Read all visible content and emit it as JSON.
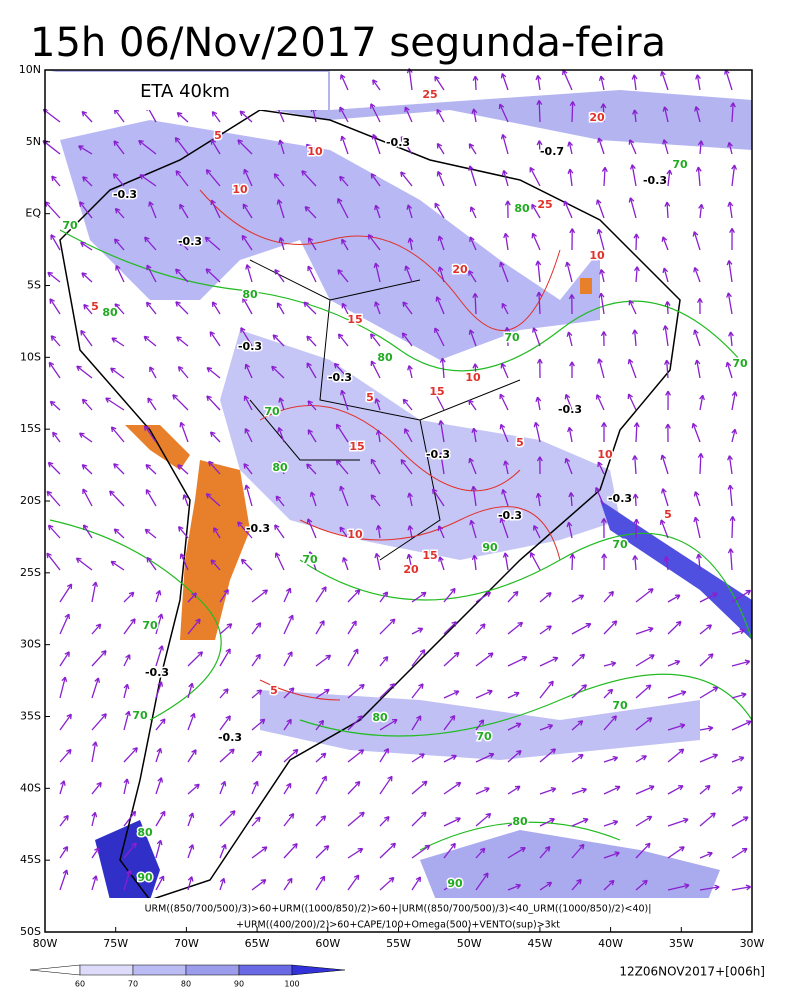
{
  "header": {
    "title": "15h 06/Nov/2017 segunda-feira"
  },
  "map": {
    "model_label": "ETA 40km",
    "lat_labels": [
      "10N",
      "5N",
      "EQ",
      "5S",
      "10S",
      "15S",
      "20S",
      "25S",
      "30S",
      "35S",
      "40S",
      "45S",
      "50S"
    ],
    "lon_labels": [
      "80W",
      "75W",
      "70W",
      "65W",
      "60W",
      "55W",
      "50W",
      "45W",
      "40W",
      "35W",
      "30W"
    ],
    "contour_labels": [
      "-0.3",
      "-0.3",
      "-0.3",
      "-0.3",
      "-0.3",
      "-0.7",
      "-0.3",
      "-0.3",
      "-0.3",
      "-0.3",
      "-0.3",
      "-0.3",
      "-0.3",
      "-0.3",
      "70",
      "80",
      "80",
      "80",
      "70",
      "70",
      "70",
      "80",
      "70",
      "90",
      "70",
      "70",
      "80",
      "70",
      "70",
      "70",
      "80",
      "90",
      "80",
      "90",
      "70",
      "80",
      "10",
      "10",
      "5",
      "15",
      "20",
      "5",
      "10",
      "15",
      "15",
      "10",
      "15",
      "20",
      "5",
      "25",
      "25",
      "20",
      "10",
      "5",
      "5",
      "10",
      "5"
    ],
    "formula_lines": [
      "URM((850/700/500)/3)>60+URM((1000/850)/2)>60+|URM((850/700/500)/3)<40_URM((1000/850)/2)<40)|",
      "+URM((400/200)/2)>60+CAPE/100+Omega(500)+VENTO(sup)>3kt"
    ]
  },
  "colorbar": {
    "labels": [
      "60",
      "70",
      "80",
      "90",
      "100"
    ]
  },
  "footer": {
    "timestamp": "12Z06NOV2017+[006h]"
  }
}
